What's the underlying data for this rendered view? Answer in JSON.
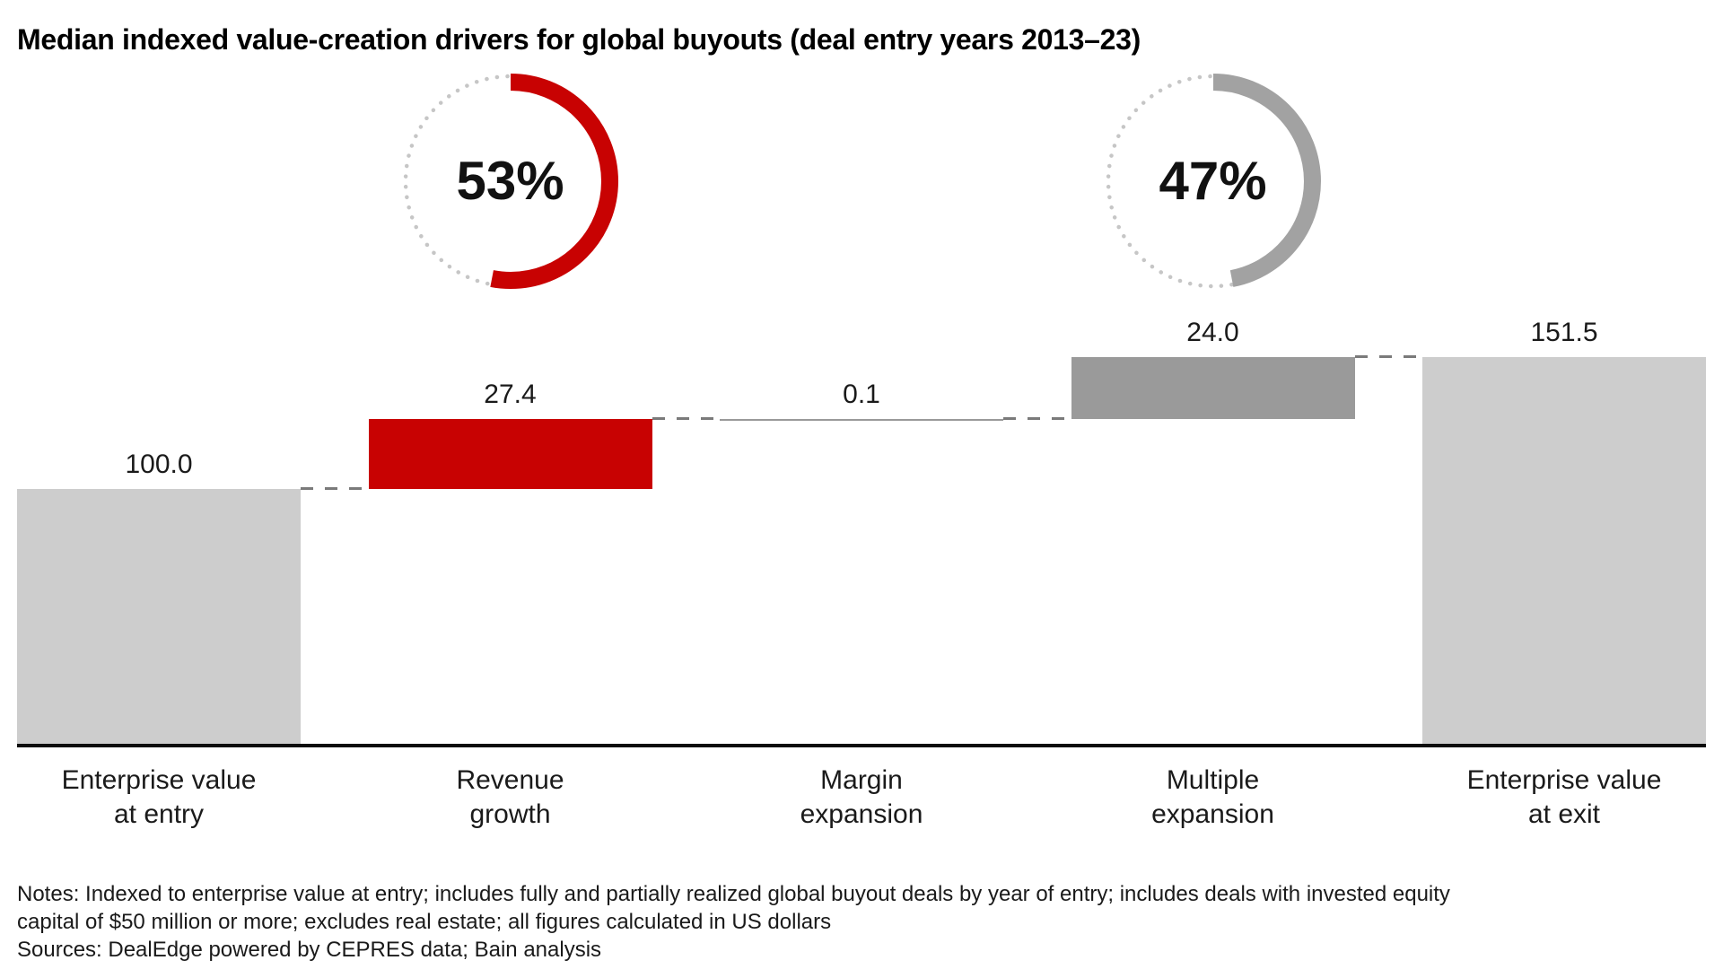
{
  "title": "Median indexed value-creation drivers for global buyouts (deal entry years 2013–23)",
  "notes": {
    "line1": "Notes: Indexed to enterprise value at entry; includes fully and partially realized global buyout deals by year of entry; includes deals with invested equity",
    "line2": "capital of $50 million or more; excludes real estate; all figures calculated in US dollars",
    "sources": "Sources: DealEdge powered by CEPRES data; Bain analysis"
  },
  "colors": {
    "red": "#c80202",
    "light_gray": "#cdcdcd",
    "medium_gray": "#9a9a9a",
    "gauge_gray": "#a2a2a2",
    "dotted_track": "#c6c6c6",
    "connector_gray": "#7a7a7a",
    "axis_black": "#0c0c0c",
    "text": "#1a1a1a"
  },
  "chart_data": {
    "type": "bar",
    "subtype": "waterfall",
    "title": "Median indexed value-creation drivers for global buyouts (deal entry years 2013–23)",
    "categories": [
      "Enterprise value\nat entry",
      "Revenue\ngrowth",
      "Margin\nexpansion",
      "Multiple\nexpansion",
      "Enterprise value\nat exit"
    ],
    "values": [
      100.0,
      27.4,
      0.1,
      24.0,
      151.5
    ],
    "value_labels": [
      "100.0",
      "27.4",
      "0.1",
      "24.0",
      "151.5"
    ],
    "bar_kinds": [
      "total",
      "delta",
      "delta",
      "delta",
      "total"
    ],
    "bar_color_keys": [
      "light_gray",
      "red",
      "medium_gray",
      "medium_gray",
      "light_gray"
    ],
    "xlabel": "",
    "ylabel": "",
    "ylim": [
      0,
      160
    ],
    "grid": false,
    "legend": false,
    "gauges": [
      {
        "label": "53%",
        "percent": 53,
        "color_key": "red",
        "over_category": "Revenue growth",
        "column": 1
      },
      {
        "label": "47%",
        "percent": 47,
        "color_key": "gauge_gray",
        "over_category": "Multiple expansion",
        "column": 3
      }
    ]
  }
}
